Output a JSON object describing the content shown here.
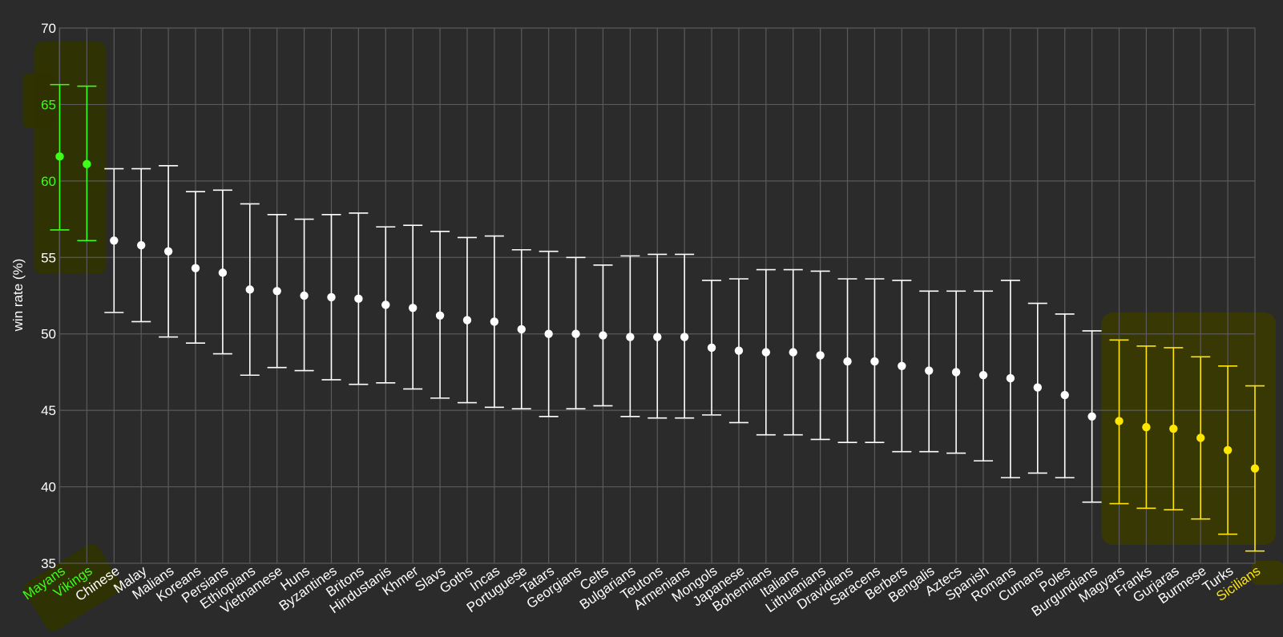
{
  "colors": {
    "background": "#2b2b2b",
    "grid": "#5a5a5a",
    "normal": "#ffffff",
    "top": "#3dff1a",
    "bottom": "#ffe600",
    "highlight_top": "#2f3300",
    "highlight_bottom": "#3a3a00",
    "axis_text": "#ffffff"
  },
  "chart_data": {
    "type": "scatter",
    "title": "",
    "xlabel": "",
    "ylabel": "win rate (%)",
    "ylim": [
      35,
      70
    ],
    "yticks": [
      35,
      40,
      45,
      50,
      55,
      60,
      65,
      70
    ],
    "grid": true,
    "errorbars": true,
    "categories": [
      "Mayans",
      "Vikings",
      "Chinese",
      "Malay",
      "Malians",
      "Koreans",
      "Persians",
      "Ethiopians",
      "Vietnamese",
      "Huns",
      "Byzantines",
      "Britons",
      "Hindustanis",
      "Khmer",
      "Slavs",
      "Goths",
      "Incas",
      "Portuguese",
      "Tatars",
      "Georgians",
      "Celts",
      "Bulgarians",
      "Teutons",
      "Armenians",
      "Mongols",
      "Japanese",
      "Bohemians",
      "Italians",
      "Lithuanians",
      "Dravidians",
      "Saracens",
      "Berbers",
      "Bengalis",
      "Aztecs",
      "Spanish",
      "Romans",
      "Cumans",
      "Poles",
      "Burgundians",
      "Magyars",
      "Franks",
      "Gurjaras",
      "Burmese",
      "Turks",
      "Sicilians"
    ],
    "values": [
      61.6,
      61.1,
      56.1,
      55.8,
      55.4,
      54.3,
      54.0,
      52.9,
      52.8,
      52.5,
      52.4,
      52.3,
      51.9,
      51.7,
      51.2,
      50.9,
      50.8,
      50.3,
      50.0,
      50.0,
      49.9,
      49.8,
      49.8,
      49.8,
      49.1,
      48.9,
      48.8,
      48.8,
      48.6,
      48.2,
      48.2,
      47.9,
      47.6,
      47.5,
      47.3,
      47.1,
      46.5,
      46.0,
      44.6,
      44.3,
      43.9,
      43.8,
      43.2,
      42.4,
      41.2
    ],
    "upper": [
      66.3,
      66.2,
      60.8,
      60.8,
      61.0,
      59.3,
      59.4,
      58.5,
      57.8,
      57.5,
      57.8,
      57.9,
      57.0,
      57.1,
      56.7,
      56.3,
      56.4,
      55.5,
      55.4,
      55.0,
      54.5,
      55.1,
      55.2,
      55.2,
      53.5,
      53.6,
      54.2,
      54.2,
      54.1,
      53.6,
      53.6,
      53.5,
      52.8,
      52.8,
      52.8,
      53.5,
      52.0,
      51.3,
      50.2,
      49.6,
      49.2,
      49.1,
      48.5,
      47.9,
      46.6
    ],
    "lower": [
      56.8,
      56.1,
      51.4,
      50.8,
      49.8,
      49.4,
      48.7,
      47.3,
      47.8,
      47.6,
      47.0,
      46.7,
      46.8,
      46.4,
      45.8,
      45.5,
      45.2,
      45.1,
      44.6,
      45.1,
      45.3,
      44.6,
      44.5,
      44.5,
      44.7,
      44.2,
      43.4,
      43.4,
      43.1,
      42.9,
      42.9,
      42.3,
      42.3,
      42.2,
      41.7,
      40.6,
      40.9,
      40.6,
      39.0,
      38.9,
      38.6,
      38.5,
      37.9,
      36.9,
      35.8
    ],
    "groups": [
      "top",
      "top",
      "normal",
      "normal",
      "normal",
      "normal",
      "normal",
      "normal",
      "normal",
      "normal",
      "normal",
      "normal",
      "normal",
      "normal",
      "normal",
      "normal",
      "normal",
      "normal",
      "normal",
      "normal",
      "normal",
      "normal",
      "normal",
      "normal",
      "normal",
      "normal",
      "normal",
      "normal",
      "normal",
      "normal",
      "normal",
      "normal",
      "normal",
      "normal",
      "normal",
      "normal",
      "normal",
      "normal",
      "normal",
      "bottom",
      "bottom",
      "bottom",
      "bottom",
      "bottom",
      "bottom"
    ]
  }
}
